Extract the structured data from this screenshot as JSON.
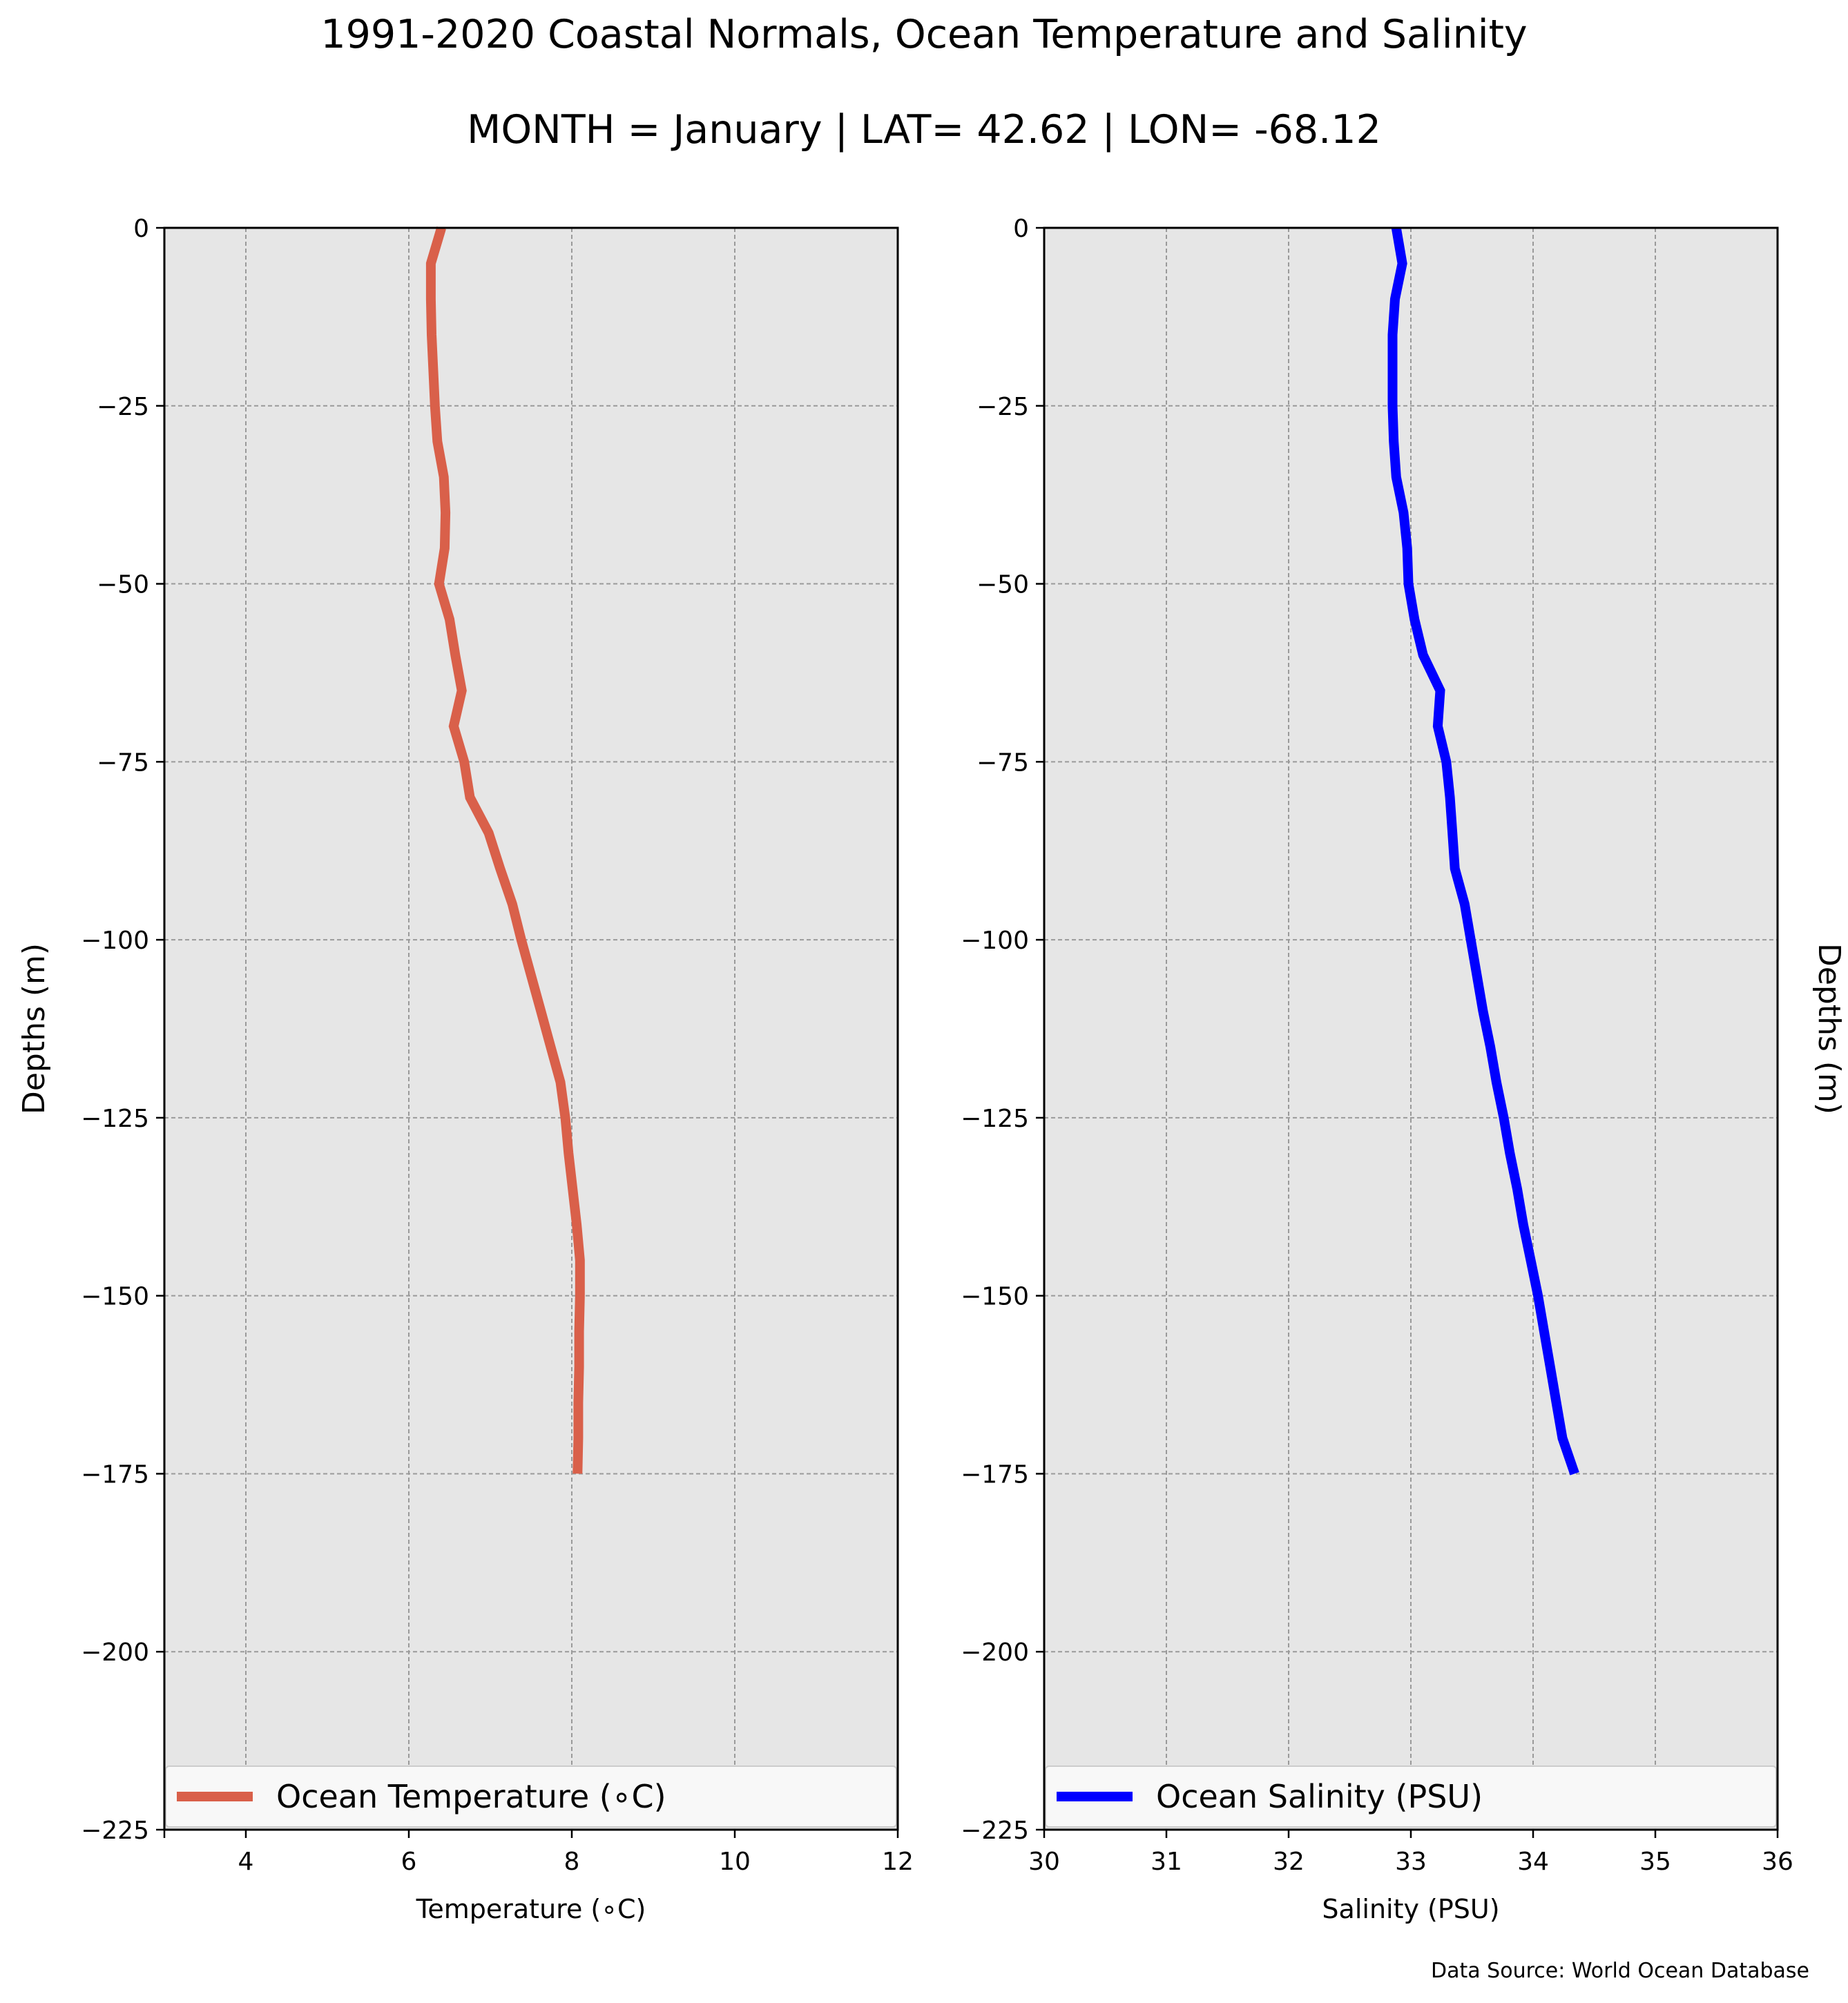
{
  "title": "1991-2020 Coastal Normals, Ocean Temperature and Salinity",
  "subtitle": "MONTH = January | LAT= 42.62 | LON= -68.12",
  "source_note": "Data Source: World Ocean Database",
  "chart_data": [
    {
      "type": "line",
      "xlabel": "Temperature (∘C)",
      "ylabel": "Depths (m)",
      "xlim": [
        3,
        12
      ],
      "ylim": [
        -225,
        0
      ],
      "xticks": [
        4,
        6,
        8,
        10,
        12
      ],
      "yticks": [
        0,
        -25,
        -50,
        -75,
        -100,
        -125,
        -150,
        -175,
        -200,
        -225
      ],
      "grid": true,
      "legend_placement": "bottom",
      "series": [
        {
          "name": "Ocean Temperature (∘C)",
          "color": "#d9604a",
          "x": [
            6.4,
            6.27,
            6.27,
            6.28,
            6.3,
            6.32,
            6.35,
            6.43,
            6.45,
            6.44,
            6.37,
            6.5,
            6.57,
            6.65,
            6.55,
            6.68,
            6.75,
            6.98,
            7.12,
            7.27,
            7.38,
            7.5,
            7.62,
            7.74,
            7.86,
            7.92,
            7.96,
            8.01,
            8.06,
            8.1,
            8.1,
            8.09,
            8.09,
            8.08,
            8.08,
            8.07
          ],
          "y": [
            0,
            -5,
            -10,
            -15,
            -20,
            -25,
            -30,
            -35,
            -40,
            -45,
            -50,
            -55,
            -60,
            -65,
            -70,
            -75,
            -80,
            -85,
            -90,
            -95,
            -100,
            -105,
            -110,
            -115,
            -120,
            -125,
            -130,
            -135,
            -140,
            -145,
            -150,
            -155,
            -160,
            -165,
            -170,
            -175
          ]
        }
      ]
    },
    {
      "type": "line",
      "xlabel": "Salinity (PSU)",
      "ylabel": "Depths (m)",
      "xlim": [
        30,
        36
      ],
      "ylim": [
        -225,
        0
      ],
      "xticks": [
        30,
        31,
        32,
        33,
        34,
        35,
        36
      ],
      "yticks": [
        0,
        -25,
        -50,
        -75,
        -100,
        -125,
        -150,
        -175,
        -200,
        -225
      ],
      "grid": true,
      "legend_placement": "bottom",
      "series": [
        {
          "name": "Ocean Salinity (PSU)",
          "color": "#0000ff",
          "x": [
            32.88,
            32.93,
            32.87,
            32.85,
            32.85,
            32.85,
            32.86,
            32.88,
            32.94,
            32.97,
            32.98,
            33.03,
            33.1,
            33.24,
            33.22,
            33.29,
            33.32,
            33.34,
            33.36,
            33.44,
            33.49,
            33.54,
            33.59,
            33.65,
            33.7,
            33.76,
            33.81,
            33.87,
            33.92,
            33.98,
            34.04,
            34.09,
            34.14,
            34.19,
            34.24,
            34.34
          ],
          "y": [
            0,
            -5,
            -10,
            -15,
            -20,
            -25,
            -30,
            -35,
            -40,
            -45,
            -50,
            -55,
            -60,
            -65,
            -70,
            -75,
            -80,
            -85,
            -90,
            -95,
            -100,
            -105,
            -110,
            -115,
            -120,
            -125,
            -130,
            -135,
            -140,
            -145,
            -150,
            -155,
            -160,
            -165,
            -170,
            -175
          ]
        }
      ]
    }
  ]
}
